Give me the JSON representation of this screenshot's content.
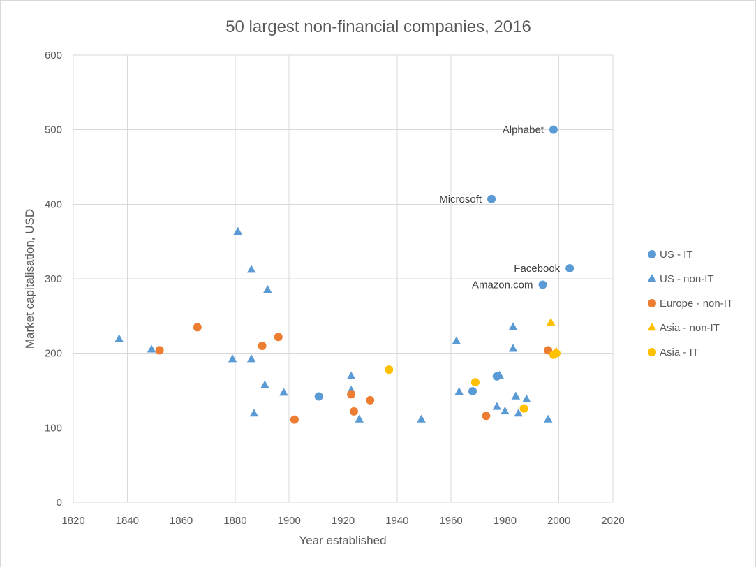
{
  "chart_data": {
    "type": "scatter",
    "title": "50 largest non-financial companies, 2016",
    "xlabel": "Year established",
    "ylabel": "Market capitalisation, USD",
    "xlim": [
      1820,
      2020
    ],
    "ylim": [
      0,
      600
    ],
    "xticks": [
      1820,
      1840,
      1860,
      1880,
      1900,
      1920,
      1940,
      1960,
      1980,
      2000,
      2020
    ],
    "yticks": [
      0,
      100,
      200,
      300,
      400,
      500,
      600
    ],
    "grid": true,
    "legend_position": "right",
    "series": [
      {
        "name": "US - IT",
        "marker": "circle",
        "color": "#5B9BD5",
        "points": [
          {
            "x": 1998,
            "y": 500
          },
          {
            "x": 1975,
            "y": 407
          },
          {
            "x": 2004,
            "y": 314
          },
          {
            "x": 1994,
            "y": 292
          },
          {
            "x": 1911,
            "y": 142
          },
          {
            "x": 1968,
            "y": 149
          },
          {
            "x": 1977,
            "y": 169
          }
        ]
      },
      {
        "name": "US - non-IT",
        "marker": "triangle",
        "color": "#5B9BD5",
        "points": [
          {
            "x": 1837,
            "y": 219
          },
          {
            "x": 1849,
            "y": 205
          },
          {
            "x": 1881,
            "y": 363
          },
          {
            "x": 1886,
            "y": 312
          },
          {
            "x": 1892,
            "y": 285
          },
          {
            "x": 1879,
            "y": 192
          },
          {
            "x": 1886,
            "y": 192
          },
          {
            "x": 1891,
            "y": 157
          },
          {
            "x": 1898,
            "y": 147
          },
          {
            "x": 1887,
            "y": 119
          },
          {
            "x": 1923,
            "y": 169
          },
          {
            "x": 1923,
            "y": 150
          },
          {
            "x": 1926,
            "y": 111
          },
          {
            "x": 1949,
            "y": 111
          },
          {
            "x": 1962,
            "y": 216
          },
          {
            "x": 1963,
            "y": 148
          },
          {
            "x": 1978,
            "y": 170
          },
          {
            "x": 1977,
            "y": 128
          },
          {
            "x": 1980,
            "y": 122
          },
          {
            "x": 1983,
            "y": 235
          },
          {
            "x": 1983,
            "y": 206
          },
          {
            "x": 1984,
            "y": 142
          },
          {
            "x": 1985,
            "y": 119
          },
          {
            "x": 1988,
            "y": 138
          },
          {
            "x": 1996,
            "y": 111
          }
        ]
      },
      {
        "name": "Europe - non-IT",
        "marker": "circle",
        "color": "#ED7D31",
        "points": [
          {
            "x": 1852,
            "y": 204
          },
          {
            "x": 1866,
            "y": 235
          },
          {
            "x": 1890,
            "y": 210
          },
          {
            "x": 1896,
            "y": 222
          },
          {
            "x": 1902,
            "y": 111
          },
          {
            "x": 1923,
            "y": 145
          },
          {
            "x": 1924,
            "y": 122
          },
          {
            "x": 1930,
            "y": 137
          },
          {
            "x": 1973,
            "y": 116
          },
          {
            "x": 1996,
            "y": 204
          }
        ]
      },
      {
        "name": "Asia - non-IT",
        "marker": "triangle",
        "color": "#FFC000",
        "points": [
          {
            "x": 1997,
            "y": 241
          },
          {
            "x": 1999,
            "y": 202
          }
        ]
      },
      {
        "name": "Asia - IT",
        "marker": "circle",
        "color": "#FFC000",
        "points": [
          {
            "x": 1937,
            "y": 178
          },
          {
            "x": 1969,
            "y": 161
          },
          {
            "x": 1987,
            "y": 126
          },
          {
            "x": 1998,
            "y": 198
          },
          {
            "x": 1999,
            "y": 200
          }
        ]
      }
    ],
    "annotations": [
      {
        "text": "Alphabet",
        "x": 1998,
        "y": 500,
        "anchor": "left"
      },
      {
        "text": "Microsoft",
        "x": 1975,
        "y": 407,
        "anchor": "left"
      },
      {
        "text": "Facebook",
        "x": 2004,
        "y": 314,
        "anchor": "left"
      },
      {
        "text": "Amazon.com",
        "x": 1994,
        "y": 292,
        "anchor": "left"
      }
    ]
  }
}
